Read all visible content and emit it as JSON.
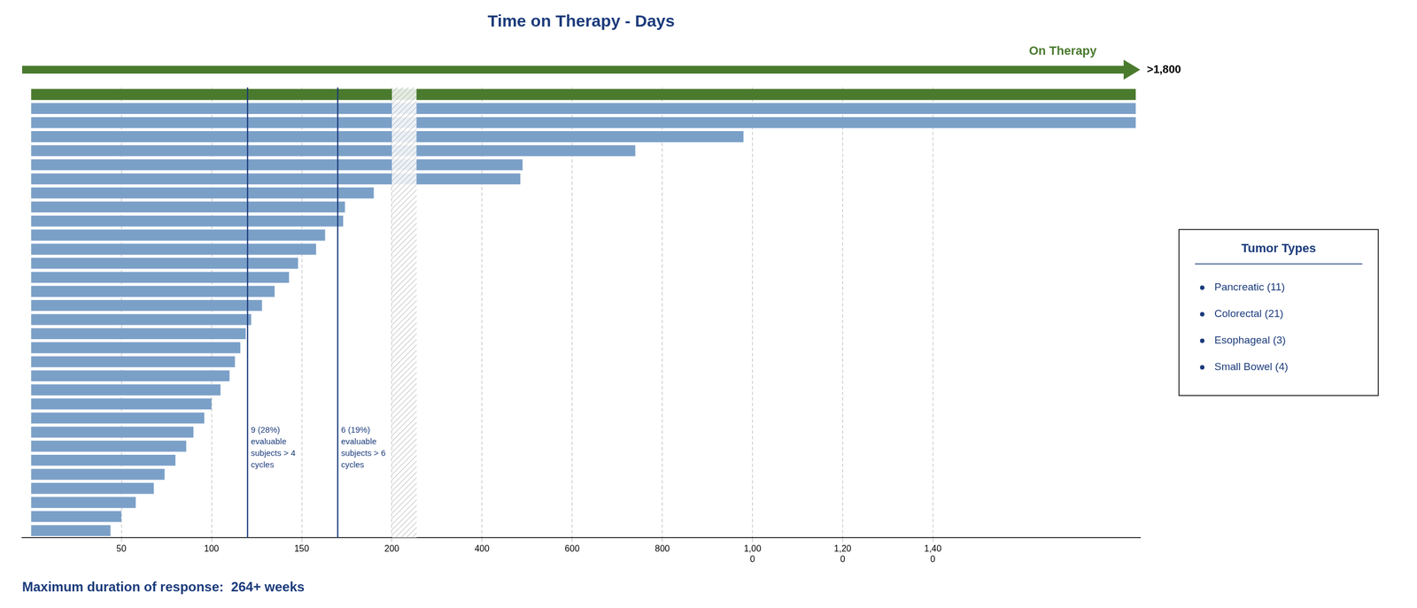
{
  "chart_data": {
    "type": "bar",
    "orientation": "horizontal",
    "title": "Time on Therapy - Days",
    "text_color": "#1a3a7a",
    "categories": [
      null,
      null,
      null,
      null,
      null,
      null,
      null,
      null,
      null,
      null,
      null,
      null,
      null,
      null,
      null,
      null,
      null,
      null,
      null,
      null,
      null,
      null,
      null,
      null,
      null,
      null,
      null,
      null,
      null,
      null,
      null,
      null
    ],
    "values": [
      1850,
      1850,
      1850,
      980,
      740,
      490,
      485,
      190,
      174,
      173,
      163,
      158,
      148,
      143,
      135,
      128,
      122,
      119,
      116,
      113,
      110,
      105,
      100,
      96,
      90,
      86,
      80,
      74,
      68,
      58,
      50,
      44
    ],
    "colors": [
      "#4a7a2e",
      "#7ba0c8",
      "#7ba0c8",
      "#7ba0c8",
      "#7ba0c8",
      "#7ba0c8",
      "#7ba0c8",
      "#7ba0c8",
      "#7ba0c8",
      "#7ba0c8",
      "#7ba0c8",
      "#7ba0c8",
      "#7ba0c8",
      "#7ba0c8",
      "#7ba0c8",
      "#7ba0c8",
      "#7ba0c8",
      "#7ba0c8",
      "#7ba0c8",
      "#7ba0c8",
      "#7ba0c8",
      "#7ba0c8",
      "#7ba0c8",
      "#7ba0c8",
      "#7ba0c8",
      "#7ba0c8",
      "#7ba0c8",
      "#7ba0c8",
      "#7ba0c8",
      "#7ba0c8",
      "#7ba0c8",
      "#7ba0c8"
    ],
    "x_break": 200,
    "x_compression": 0.25,
    "xlim": [
      -5,
      1860
    ],
    "xticks": [
      50,
      100,
      150,
      200,
      400,
      600,
      800,
      {
        "value": 1000,
        "label": "1,00\n0"
      },
      {
        "value": 1200,
        "label": "1,20\n0"
      },
      {
        "value": 1400,
        "label": "1,40\n0"
      }
    ],
    "grid": true,
    "tick_labels": "x",
    "shaded_span": [
      200,
      255
    ],
    "vlines": [
      {
        "value": 120,
        "label": "9 (28%)\nevaluable\nsubjects > 4\ncycles",
        "color": "#1a3a7a"
      },
      {
        "value": 170,
        "label": "6 (19%)\nevaluable\nsubjects > 6\ncycles",
        "color": "#1a3a7a"
      }
    ],
    "arrow": {
      "label": ">1,800",
      "caption": "On Therapy",
      "color": "#4a7a2e"
    },
    "text_box": {
      "title": "Tumor Types",
      "items": [
        "Pancreatic (11)",
        "Colorectal (21)",
        "Esophageal (3)",
        "Small Bowel (4)"
      ]
    },
    "footnote": "Maximum duration of response:  264+ weeks"
  }
}
